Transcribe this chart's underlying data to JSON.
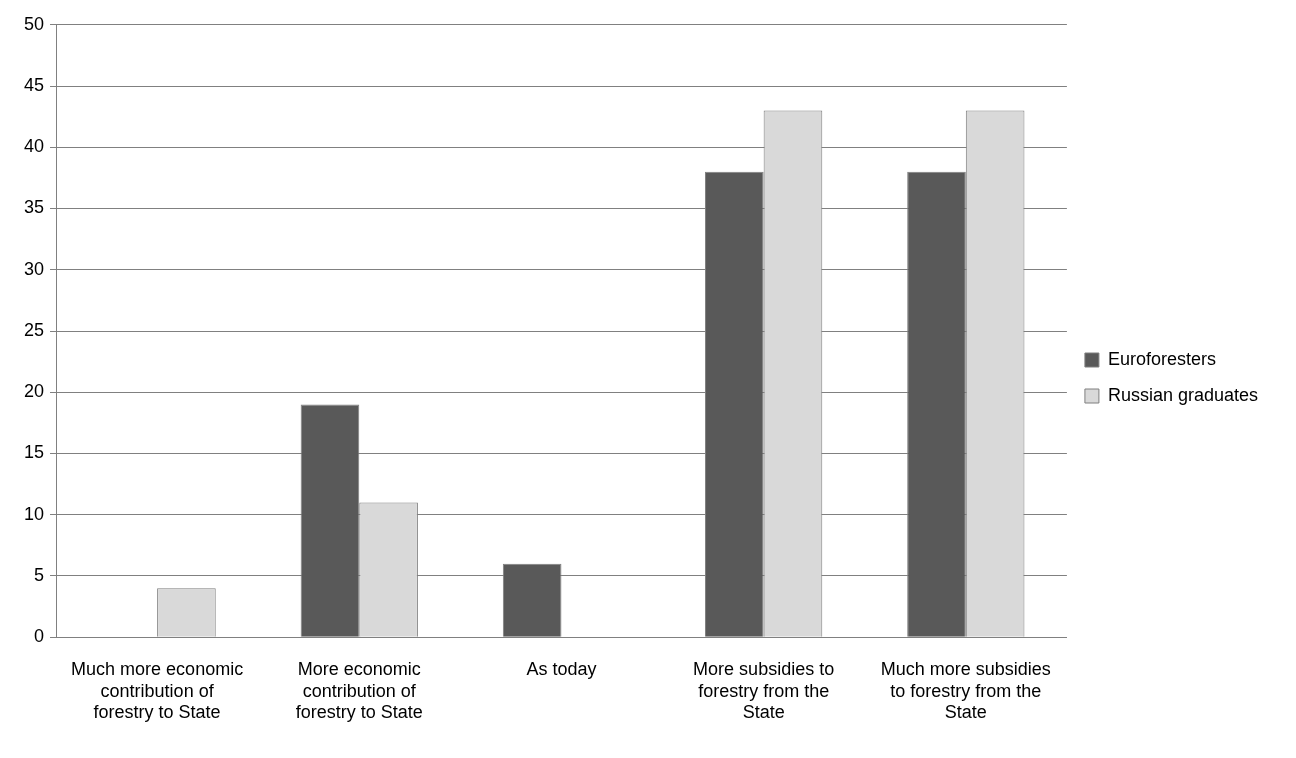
{
  "chart_data": {
    "type": "bar",
    "categories": [
      "Much more economic contribution of forestry to State",
      "More economic contribution of forestry to State",
      "As today",
      "More subsidies to forestry from the State",
      "Much more subsidies to forestry from the State"
    ],
    "series": [
      {
        "name": "Euroforesters",
        "color": "#595959",
        "values": [
          0,
          19,
          6,
          38,
          38
        ]
      },
      {
        "name": "Russian graduates",
        "color": "#d9d9d9",
        "values": [
          4,
          11,
          0,
          43,
          43
        ]
      }
    ],
    "ylim": [
      0,
      50
    ],
    "yticks": [
      0,
      5,
      10,
      15,
      20,
      25,
      30,
      35,
      40,
      45,
      50
    ],
    "grid": "y",
    "legend": "right"
  }
}
